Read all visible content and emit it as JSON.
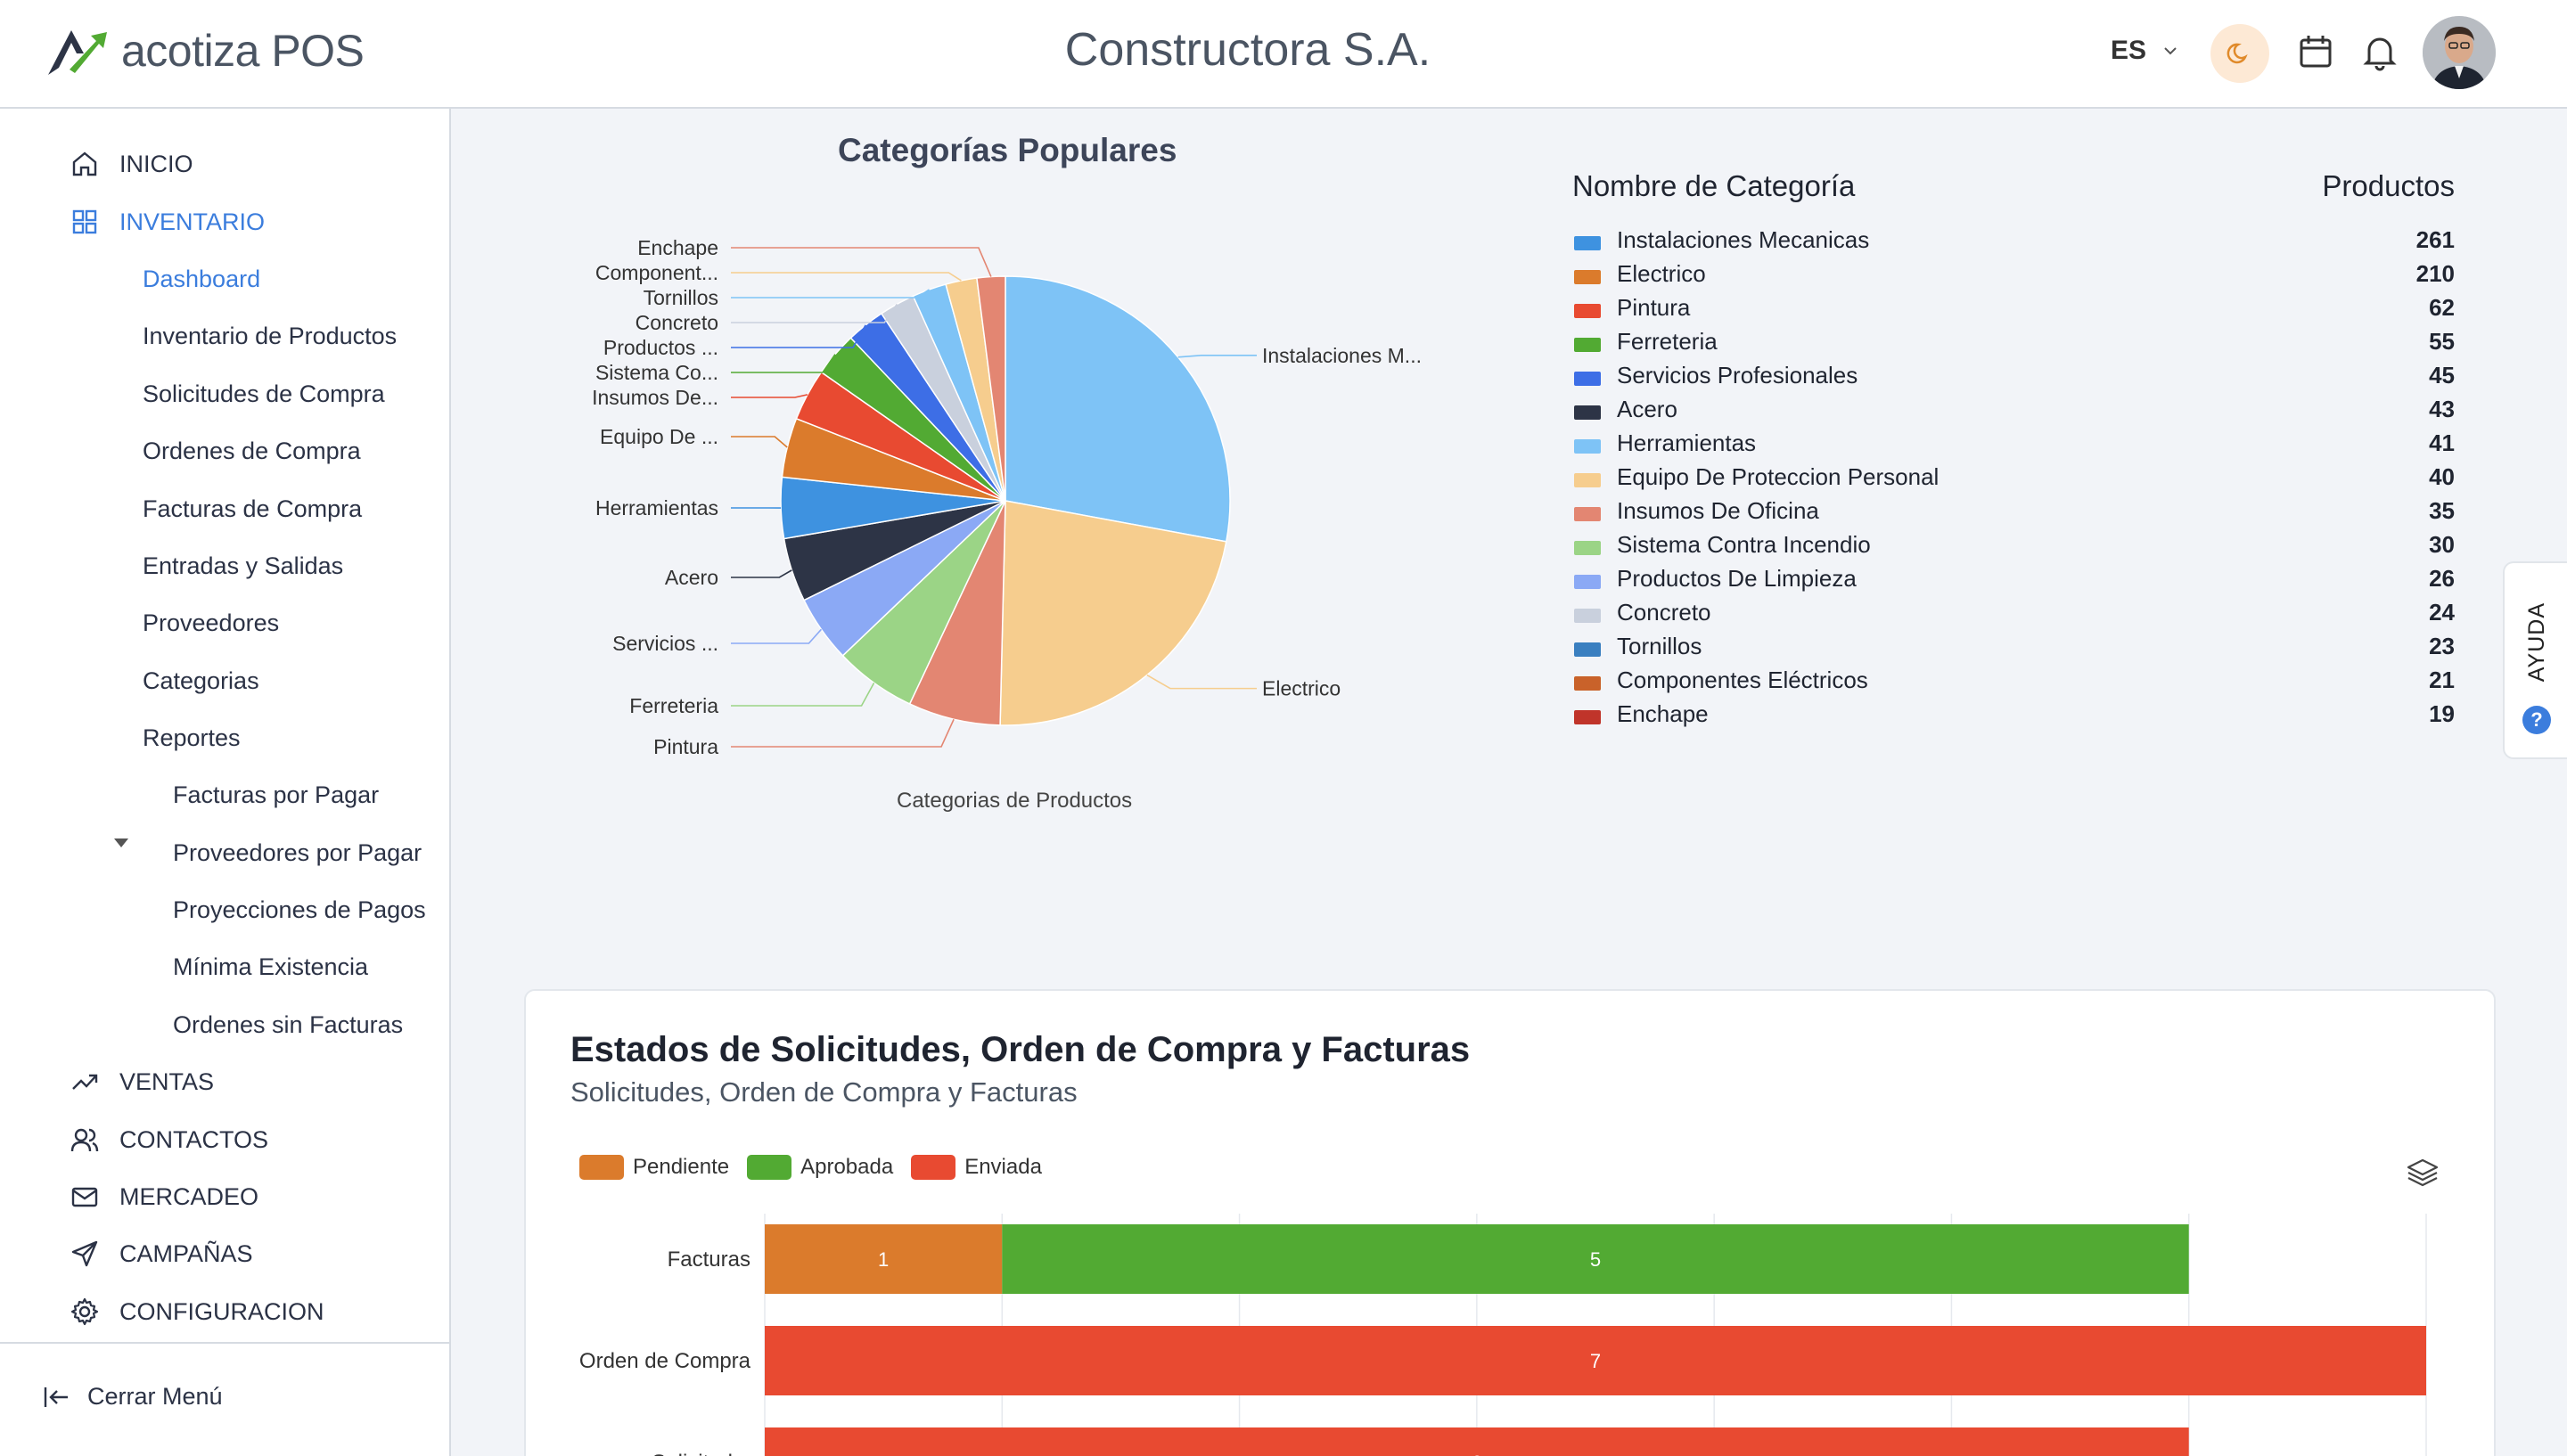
{
  "header": {
    "app_name": "acotiza POS",
    "company": "Constructora S.A.",
    "language": "ES",
    "icons": [
      "logo-arrow-icon",
      "chevron-down-icon",
      "moon-icon",
      "calendar-icon",
      "bell-icon",
      "avatar"
    ]
  },
  "sidebar": {
    "main_items": [
      {
        "label": "INICIO",
        "icon": "home-icon"
      },
      {
        "label": "INVENTARIO",
        "icon": "grid-icon",
        "active": true
      },
      {
        "label": "VENTAS",
        "icon": "trending-up-icon"
      },
      {
        "label": "CONTACTOS",
        "icon": "users-icon"
      },
      {
        "label": "MERCADEO",
        "icon": "mail-icon"
      },
      {
        "label": "CAMPAÑAS",
        "icon": "send-icon"
      },
      {
        "label": "CONFIGURACION",
        "icon": "gear-icon"
      }
    ],
    "inventory_items": [
      "Dashboard",
      "Inventario de Productos",
      "Solicitudes de Compra",
      "Ordenes de Compra",
      "Facturas de Compra",
      "Entradas y Salidas",
      "Proveedores",
      "Categorias",
      "Reportes"
    ],
    "report_items": [
      "Facturas por Pagar",
      "Proveedores por Pagar",
      "Proyecciones de Pagos",
      "Mínima Existencia",
      "Ordenes sin Facturas"
    ],
    "collapse_label": "Cerrar Menú"
  },
  "help": {
    "label": "AYUDA",
    "icon_text": "?"
  },
  "pie_section": {
    "title": "Categorías Populares",
    "caption": "Categorias de Productos",
    "table_header_name": "Nombre de Categoría",
    "table_header_count": "Productos"
  },
  "bar_card": {
    "title": "Estados de Solicitudes, Orden de Compra y Facturas",
    "subtitle": "Solicitudes, Orden de Compra y Facturas"
  },
  "colors": {
    "accent": "#3b7ddd",
    "pendiente": "#db7b2c",
    "aprobada": "#52aa33",
    "enviada": "#e84a31"
  },
  "chart_data": [
    {
      "type": "pie",
      "title": "Categorías Populares",
      "caption": "Categorias de Productos",
      "slices": [
        {
          "name": "Instalaciones Mecanicas",
          "label": "Instalaciones M...",
          "value": 261,
          "color": "#7ec3f6"
        },
        {
          "name": "Electrico",
          "label": "Electrico",
          "value": 210,
          "color": "#f6cd8e"
        },
        {
          "name": "Pintura",
          "label": "Pintura",
          "value": 62,
          "color": "#e38672"
        },
        {
          "name": "Ferreteria",
          "label": "Ferreteria",
          "value": 55,
          "color": "#9bd486"
        },
        {
          "name": "Servicios Profesionales",
          "label": "Servicios ...",
          "value": 45,
          "color": "#8ba9f5"
        },
        {
          "name": "Acero",
          "label": "Acero",
          "value": 43,
          "color": "#2d3446"
        },
        {
          "name": "Herramientas",
          "label": "Herramientas",
          "value": 41,
          "color": "#3e92e0"
        },
        {
          "name": "Equipo De Proteccion Personal",
          "label": "Equipo De ...",
          "value": 40,
          "color": "#db7b2c"
        },
        {
          "name": "Insumos De Oficina",
          "label": "Insumos De...",
          "value": 35,
          "color": "#e84a31"
        },
        {
          "name": "Sistema Contra Incendio",
          "label": "Sistema Co...",
          "value": 30,
          "color": "#52aa33"
        },
        {
          "name": "Productos De Limpieza",
          "label": "Productos ...",
          "value": 26,
          "color": "#3d6ee6"
        },
        {
          "name": "Concreto",
          "label": "Concreto",
          "value": 24,
          "color": "#c9d0dd"
        },
        {
          "name": "Tornillos",
          "label": "Tornillos",
          "value": 23,
          "color": "#7ec3f6"
        },
        {
          "name": "Componentes Eléctricos",
          "label": "Component...",
          "value": 21,
          "color": "#f6cd8e"
        },
        {
          "name": "Enchape",
          "label": "Enchape",
          "value": 19,
          "color": "#e38672"
        }
      ],
      "legend_table": [
        {
          "name": "Instalaciones Mecanicas",
          "value": 261,
          "color": "#3e92e0"
        },
        {
          "name": "Electrico",
          "value": 210,
          "color": "#db7b2c"
        },
        {
          "name": "Pintura",
          "value": 62,
          "color": "#e84a31"
        },
        {
          "name": "Ferreteria",
          "value": 55,
          "color": "#52aa33"
        },
        {
          "name": "Servicios Profesionales",
          "value": 45,
          "color": "#3d6ee6"
        },
        {
          "name": "Acero",
          "value": 43,
          "color": "#2d3446"
        },
        {
          "name": "Herramientas",
          "value": 41,
          "color": "#7ec3f6"
        },
        {
          "name": "Equipo De Proteccion Personal",
          "value": 40,
          "color": "#f6cd8e"
        },
        {
          "name": "Insumos De Oficina",
          "value": 35,
          "color": "#e38672"
        },
        {
          "name": "Sistema Contra Incendio",
          "value": 30,
          "color": "#9bd486"
        },
        {
          "name": "Productos De Limpieza",
          "value": 26,
          "color": "#8ba9f5"
        },
        {
          "name": "Concreto",
          "value": 24,
          "color": "#c9d0dd"
        },
        {
          "name": "Tornillos",
          "value": 23,
          "color": "#3a7fc0"
        },
        {
          "name": "Componentes Eléctricos",
          "value": 21,
          "color": "#c9622a"
        },
        {
          "name": "Enchape",
          "value": 19,
          "color": "#c0342a"
        }
      ]
    },
    {
      "type": "bar",
      "orientation": "horizontal",
      "stacked": true,
      "title": "Estados de Solicitudes, Orden de Compra y Facturas",
      "subtitle": "Solicitudes, Orden de Compra y Facturas",
      "categories": [
        "Facturas",
        "Orden de Compra",
        "Solicitud..."
      ],
      "series": [
        {
          "name": "Pendiente",
          "color": "#db7b2c",
          "values": [
            1,
            0,
            0
          ]
        },
        {
          "name": "Aprobada",
          "color": "#52aa33",
          "values": [
            5,
            0,
            0
          ]
        },
        {
          "name": "Enviada",
          "color": "#e84a31",
          "values": [
            0,
            7,
            6
          ]
        }
      ],
      "xlim": [
        0,
        7
      ],
      "grid": true,
      "legend_position": "top-left"
    }
  ]
}
